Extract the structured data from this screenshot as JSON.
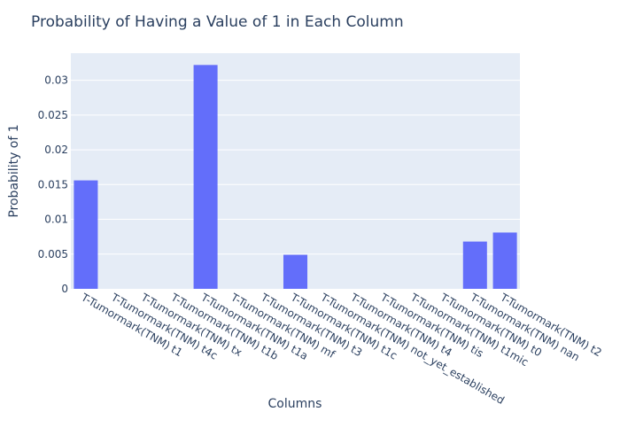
{
  "chart_data": {
    "type": "bar",
    "title": "Probability of Having a Value of 1 in Each Column",
    "xlabel": "Columns",
    "ylabel": "Probability of 1",
    "categories": [
      "T-Tumormark(TNM) t1",
      "T-Tumormark(TNM) t4c",
      "T-Tumormark(TNM) tx",
      "T-Tumormark(TNM) t1b",
      "T-Tumormark(TNM) t1a",
      "T-Tumormark(TNM) mf",
      "T-Tumormark(TNM) t3",
      "T-Tumormark(TNM) t1c",
      "T-Tumormark(TNM) not_yet_established",
      "T-Tumormark(TNM) t4",
      "T-Tumormark(TNM) tis",
      "T-Tumormark(TNM) t1mic",
      "T-Tumormark(TNM) t0",
      "T-Tumormark(TNM) nan",
      "T-Tumormark(TNM) t2"
    ],
    "values": [
      0.0156,
      0,
      0,
      0,
      0.0322,
      0,
      0,
      0.0049,
      0,
      0,
      0,
      0,
      0,
      0.0068,
      0.0081
    ],
    "ylim": [
      0,
      0.0339
    ],
    "yticks": [
      0,
      0.005,
      0.01,
      0.015,
      0.02,
      0.025,
      0.03
    ],
    "ytick_labels": [
      "0",
      "0.005",
      "0.01",
      "0.015",
      "0.02",
      "0.025",
      "0.03"
    ],
    "grid": true,
    "colors": {
      "bar": "#636efa",
      "plot_bg": "#e5ecf6",
      "grid": "#ffffff",
      "text": "#2a3f5f"
    }
  }
}
